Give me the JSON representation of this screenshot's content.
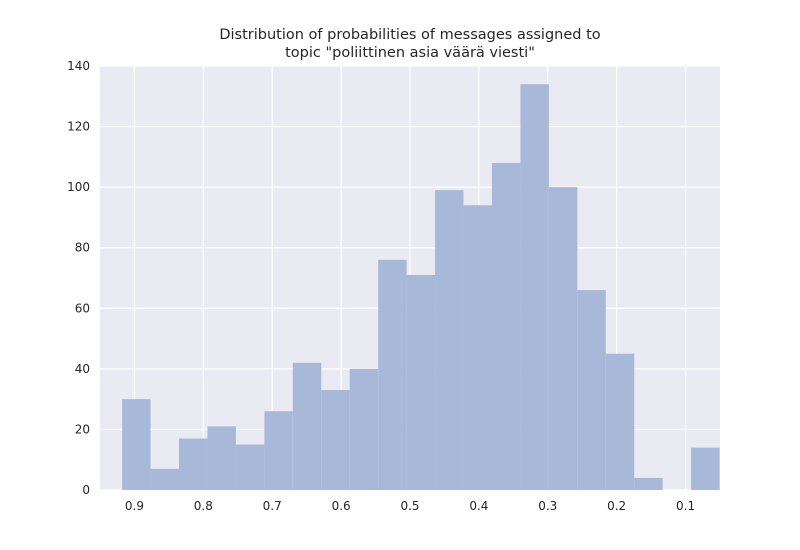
{
  "chart_data": {
    "type": "bar",
    "title_lines": [
      "Distribution of probabilities of messages assigned to",
      "topic \"poliittinen asia väärä viesti\""
    ],
    "xlabel": "",
    "ylabel": "",
    "x_reversed": true,
    "xlim": [
      0.95,
      0.05
    ],
    "ylim": [
      0,
      140
    ],
    "xticks": [
      0.9,
      0.8,
      0.7,
      0.6,
      0.5,
      0.4,
      0.3,
      0.2,
      0.1
    ],
    "xtick_labels": [
      "0.9",
      "0.8",
      "0.7",
      "0.6",
      "0.5",
      "0.4",
      "0.3",
      "0.2",
      "0.1"
    ],
    "yticks": [
      0,
      20,
      40,
      60,
      80,
      100,
      120,
      140
    ],
    "ytick_labels": [
      "0",
      "20",
      "40",
      "60",
      "80",
      "100",
      "120",
      "140"
    ],
    "bin_edges": [
      0.9179,
      0.8766,
      0.8353,
      0.794,
      0.7527,
      0.7114,
      0.6701,
      0.6288,
      0.5875,
      0.5462,
      0.5049,
      0.4636,
      0.4223,
      0.381,
      0.3397,
      0.2984,
      0.2571,
      0.2158,
      0.1745,
      0.1332,
      0.0919,
      0.0506
    ],
    "values": [
      30,
      7,
      17,
      21,
      15,
      26,
      42,
      33,
      40,
      76,
      71,
      99,
      94,
      108,
      134,
      100,
      66,
      45,
      4,
      0,
      14
    ],
    "grid": true,
    "colors": {
      "background": "#eaeaf2",
      "grid": "#ffffff",
      "bar": "#a8b8d8",
      "text": "#262626"
    }
  }
}
